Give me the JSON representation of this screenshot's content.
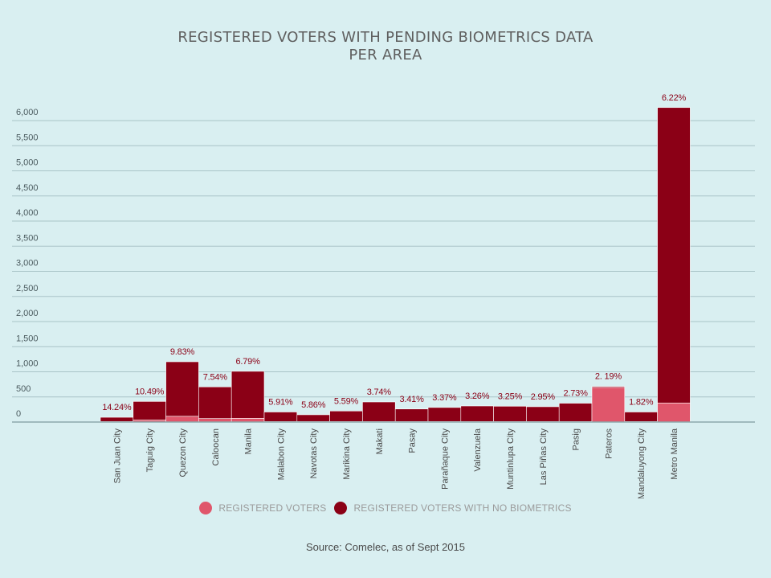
{
  "title": {
    "line1": "REGISTERED VOTERS WITH PENDING BIOMETRICS DATA",
    "line2": "PER AREA"
  },
  "legend": {
    "registered": "REGISTERED VOTERS",
    "no_biometrics": "REGISTERED VOTERS WITH NO BIOMETRICS"
  },
  "source": "Source: Comelec, as of Sept 2015",
  "colors": {
    "background": "#d9eff1",
    "registered": "#e0566b",
    "no_biometrics": "#8b0016",
    "grid": "#a9c4c8",
    "label": "#8b0016"
  },
  "chart_data": {
    "type": "bar",
    "stacked": true,
    "categories": [
      "San Juan City",
      "Taguig City",
      "Quezon City",
      "Caloocan",
      "Manila",
      "Malabon City",
      "Navotas City",
      "Marikina City",
      "Makati",
      "Pasay",
      "Parañaque City",
      "Valenzuela",
      "Muntinlupa City",
      "Las Piñas City",
      "Pasig",
      "Pateros",
      "Mandaluyong City",
      "Metro Manila"
    ],
    "series": [
      {
        "name": "REGISTERED VOTERS",
        "values": [
          10,
          40,
          115,
          70,
          75,
          10,
          10,
          10,
          10,
          10,
          10,
          10,
          10,
          10,
          10,
          690,
          10,
          380
        ]
      },
      {
        "name": "REGISTERED VOTERS WITH NO BIOMETRICS",
        "values": [
          85,
          370,
          1085,
          630,
          935,
          190,
          135,
          210,
          390,
          250,
          280,
          310,
          305,
          295,
          365,
          20,
          190,
          5880
        ]
      }
    ],
    "data_labels": [
      "14.24%",
      "10.49%",
      "9.83%",
      "7.54%",
      "6.79%",
      "5.91%",
      "5.86%",
      "5.59%",
      "3.74%",
      "3.41%",
      "3.37%",
      "3.26%",
      "3.25%",
      "2.95%",
      "2.73%",
      "2. 19%",
      "1.82%",
      "6.22%"
    ],
    "yticks": [
      0,
      500,
      1000,
      1500,
      2000,
      2500,
      3000,
      3500,
      4000,
      4500,
      5000,
      5500,
      6000
    ],
    "ytick_labels": [
      "0",
      "500",
      "1,000",
      "1,500",
      "2,000",
      "2,500",
      "3,000",
      "3,500",
      "4,000",
      "4,500",
      "5,000",
      "5,500",
      "6,000"
    ],
    "ylim": [
      0,
      6000
    ],
    "xlabel": "",
    "ylabel": "",
    "grid": true,
    "legend_position": "bottom"
  }
}
